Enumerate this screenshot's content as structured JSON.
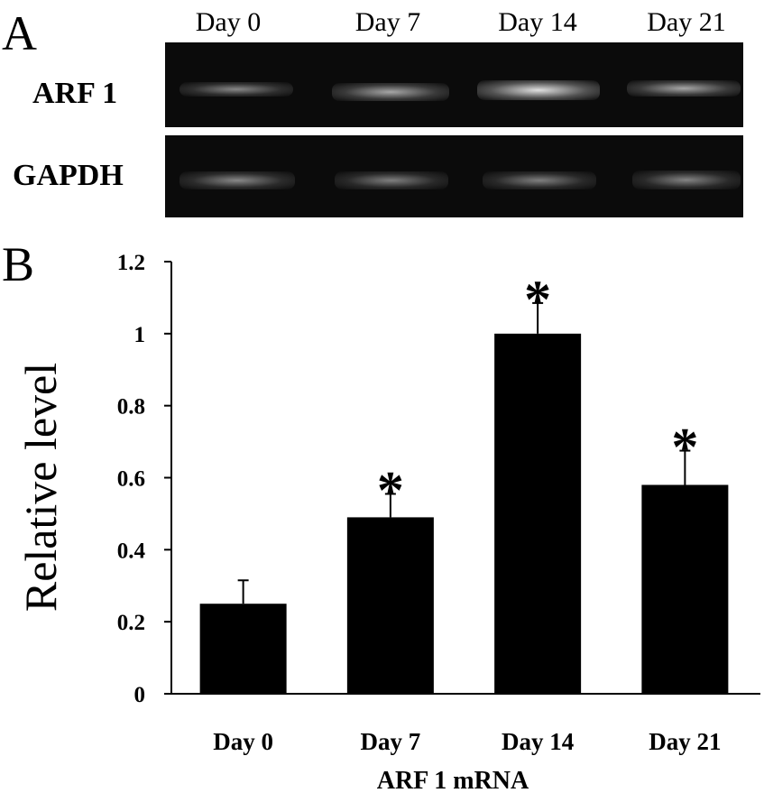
{
  "panel_a": {
    "letter": "A",
    "lanes": [
      "Day 0",
      "Day 7",
      "Day 14",
      "Day 21"
    ],
    "genes": [
      "ARF 1",
      "GAPDH"
    ]
  },
  "panel_b": {
    "letter": "B"
  },
  "chart_data": {
    "type": "bar",
    "categories": [
      "Day 0",
      "Day 7",
      "Day 14",
      "Day 21"
    ],
    "values": [
      0.25,
      0.49,
      1.0,
      0.58
    ],
    "error": [
      0.065,
      0.065,
      0.085,
      0.095
    ],
    "significant": [
      false,
      true,
      true,
      true
    ],
    "marker_symbol": "*",
    "xlabel": "ARF 1 mRNA",
    "ylabel": "Relative level",
    "ylim": [
      0,
      1.2
    ],
    "yticks": [
      "0",
      "0.2",
      "0.4",
      "0.6",
      "0.8",
      "1",
      "1.2"
    ],
    "bar_color": "#000000",
    "grid": false,
    "legend": "none"
  }
}
